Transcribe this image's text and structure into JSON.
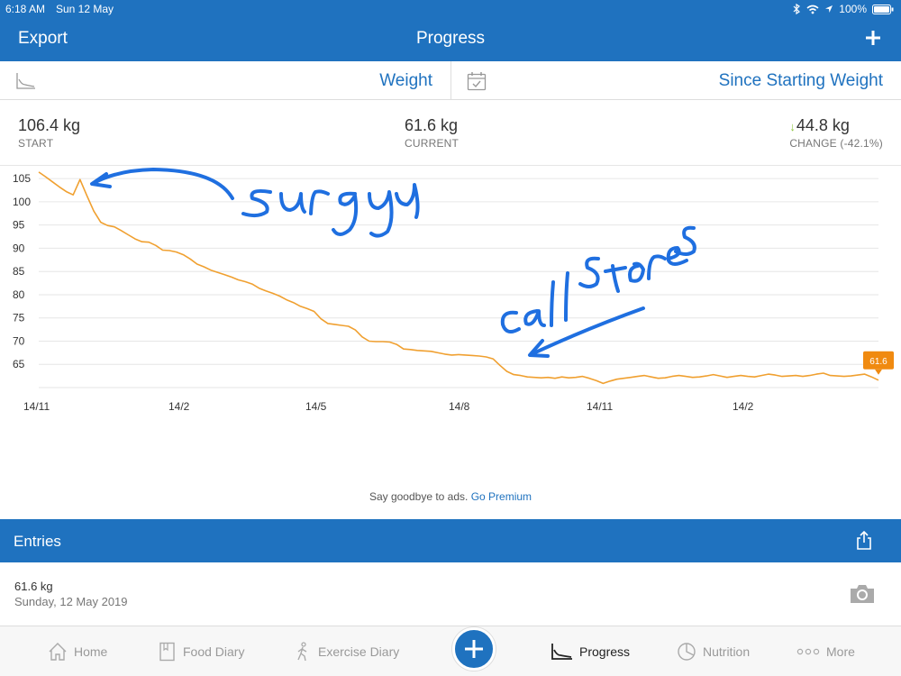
{
  "status": {
    "time": "6:18 AM",
    "date": "Sun 12 May",
    "battery": "100%"
  },
  "nav": {
    "left": "Export",
    "title": "Progress",
    "add_icon": "plus-icon"
  },
  "selector": {
    "metric": "Weight",
    "range": "Since Starting Weight"
  },
  "stats": {
    "start_value": "106.4 kg",
    "start_label": "START",
    "current_value": "61.6 kg",
    "current_label": "CURRENT",
    "change_value": "44.8 kg",
    "change_label": "CHANGE (-42.1%)",
    "change_direction": "down"
  },
  "chart_data": {
    "type": "line",
    "title": "",
    "xlabel": "",
    "ylabel": "",
    "y_ticks": [
      "105",
      "100",
      "95",
      "90",
      "85",
      "80",
      "75",
      "70",
      "65"
    ],
    "x_ticks": [
      "14/11",
      "14/2",
      "14/5",
      "14/8",
      "14/11",
      "14/2"
    ],
    "ylim": [
      60,
      106
    ],
    "grid": true,
    "line_color": "#f0a030",
    "last_label": "61.6",
    "series": [
      {
        "values": [
          106.4,
          105.4,
          104.3,
          103.2,
          102.2,
          101.5,
          104.8,
          101.3,
          98.0,
          95.6,
          94.9,
          94.6,
          93.8,
          92.9,
          92.0,
          91.4,
          91.3,
          90.6,
          89.6,
          89.5,
          89.2,
          88.6,
          87.7,
          86.6,
          86.0,
          85.3,
          84.8,
          84.3,
          83.8,
          83.2,
          82.8,
          82.3,
          81.4,
          80.8,
          80.3,
          79.7,
          78.9,
          78.3,
          77.5,
          77.0,
          76.4,
          74.8,
          73.8,
          73.6,
          73.4,
          73.2,
          72.4,
          70.9,
          70.0,
          69.9,
          69.9,
          69.8,
          69.3,
          68.3,
          68.2,
          68.0,
          67.9,
          67.8,
          67.5,
          67.2,
          67.0,
          67.1,
          67.0,
          66.9,
          66.8,
          66.6,
          66.2,
          64.8,
          63.5,
          62.8,
          62.6,
          62.3,
          62.2,
          62.1,
          62.2,
          62.0,
          62.3,
          62.1,
          62.2,
          62.4,
          62.0,
          61.5,
          60.9,
          61.4,
          61.8,
          62.0,
          62.2,
          62.4,
          62.6,
          62.3,
          62.0,
          62.1,
          62.4,
          62.6,
          62.4,
          62.2,
          62.3,
          62.5,
          62.8,
          62.5,
          62.2,
          62.4,
          62.6,
          62.4,
          62.3,
          62.6,
          62.9,
          62.7,
          62.4,
          62.5,
          62.6,
          62.4,
          62.6,
          62.9,
          63.1,
          62.6,
          62.5,
          62.4,
          62.5,
          62.7,
          62.9,
          62.3,
          61.6
        ]
      }
    ],
    "annotations": [
      "surgy",
      "call stores"
    ]
  },
  "ad": {
    "text": "Say goodbye to ads.",
    "link": "Go Premium"
  },
  "entries": {
    "title": "Entries",
    "items": [
      {
        "weight": "61.6 kg",
        "date": "Sunday, 12 May 2019"
      }
    ]
  },
  "tabs": {
    "home": "Home",
    "food": "Food Diary",
    "exercise": "Exercise Diary",
    "progress": "Progress",
    "nutrition": "Nutrition",
    "more": "More"
  },
  "colors": {
    "brand": "#1f72bf",
    "line": "#f0a030",
    "annotation": "#1f6fe0",
    "change_arrow": "#8dc63f"
  }
}
